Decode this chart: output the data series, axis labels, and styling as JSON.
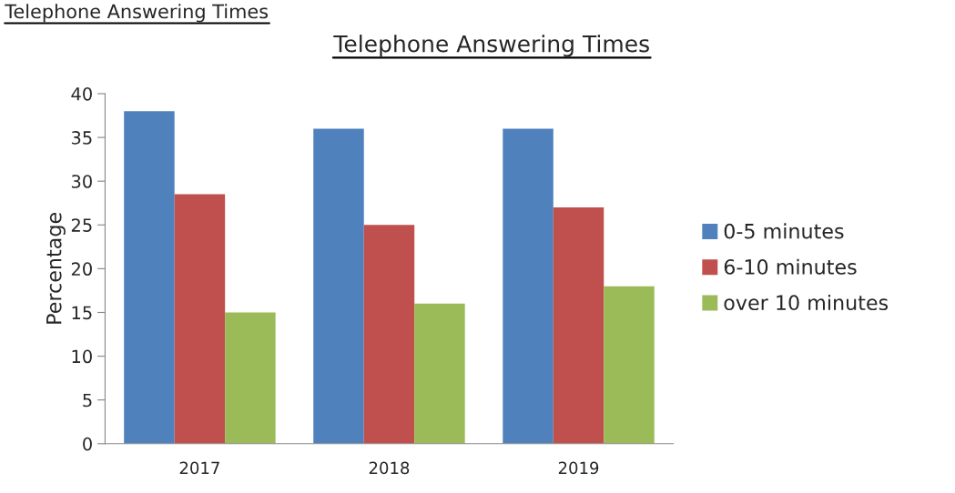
{
  "chart_data": {
    "type": "bar",
    "title": "Telephone Answering Times",
    "ylabel": "Percentage",
    "annotations": [
      "Telephone Answering Times"
    ],
    "categories": [
      "2017",
      "2018",
      "2019"
    ],
    "series": [
      {
        "name": "0-5 minutes",
        "color": "#4f81bd",
        "values": [
          38,
          36,
          36
        ]
      },
      {
        "name": "6-10 minutes",
        "color": "#c0504d",
        "values": [
          28.5,
          25,
          27
        ]
      },
      {
        "name": "over 10 minutes",
        "color": "#9bbb59",
        "values": [
          15,
          16,
          18
        ]
      }
    ],
    "ylim": [
      0,
      40
    ],
    "yticks": [
      0,
      5,
      10,
      15,
      20,
      25,
      30,
      35,
      40
    ],
    "grid": false,
    "legend": "right"
  }
}
